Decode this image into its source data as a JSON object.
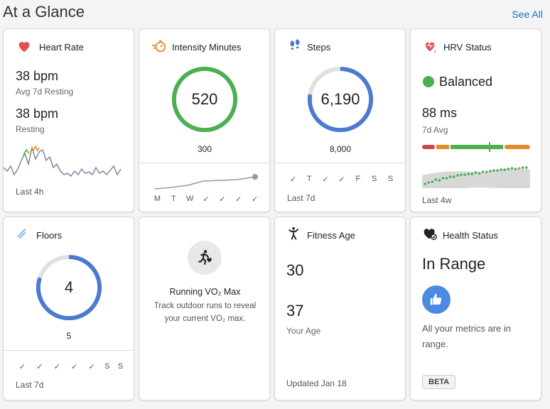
{
  "header": {
    "title": "At a Glance",
    "see_all": "See All"
  },
  "heart_rate": {
    "title": "Heart Rate",
    "avg_value": "38 bpm",
    "avg_label": "Avg 7d Resting",
    "resting_value": "38 bpm",
    "resting_label": "Resting",
    "footer": "Last 4h"
  },
  "intensity": {
    "title": "Intensity Minutes",
    "value": "520",
    "goal": "300",
    "progress": 1.0,
    "days": [
      "M",
      "T",
      "W",
      "✓",
      "✓",
      "✓",
      "✓"
    ]
  },
  "steps": {
    "title": "Steps",
    "value": "6,190",
    "goal": "8,000",
    "progress": 0.774,
    "days": [
      "✓",
      "T",
      "✓",
      "✓",
      "F",
      "S",
      "S"
    ],
    "footer": "Last 7d"
  },
  "hrv": {
    "title": "HRV Status",
    "status": "Balanced",
    "value": "88 ms",
    "value_label": "7d Avg",
    "footer": "Last 4w"
  },
  "floors": {
    "title": "Floors",
    "value": "4",
    "goal": "5",
    "progress": 0.8,
    "days": [
      "✓",
      "✓",
      "✓",
      "✓",
      "✓",
      "S",
      "S"
    ],
    "footer": "Last 7d"
  },
  "vo2": {
    "title": "Running VO₂ Max",
    "desc": "Track outdoor runs to reveal your current VO₂ max."
  },
  "fitness_age": {
    "title": "Fitness Age",
    "value": "30",
    "actual": "37",
    "actual_label": "Your Age",
    "footer": "Updated Jan 18"
  },
  "health": {
    "title": "Health Status",
    "status": "In Range",
    "desc": "All your metrics are in range.",
    "badge": "BETA"
  },
  "colors": {
    "accent_blue": "#4a7bd0",
    "green": "#4caf50",
    "red": "#e05050",
    "orange": "#e88a2a"
  }
}
